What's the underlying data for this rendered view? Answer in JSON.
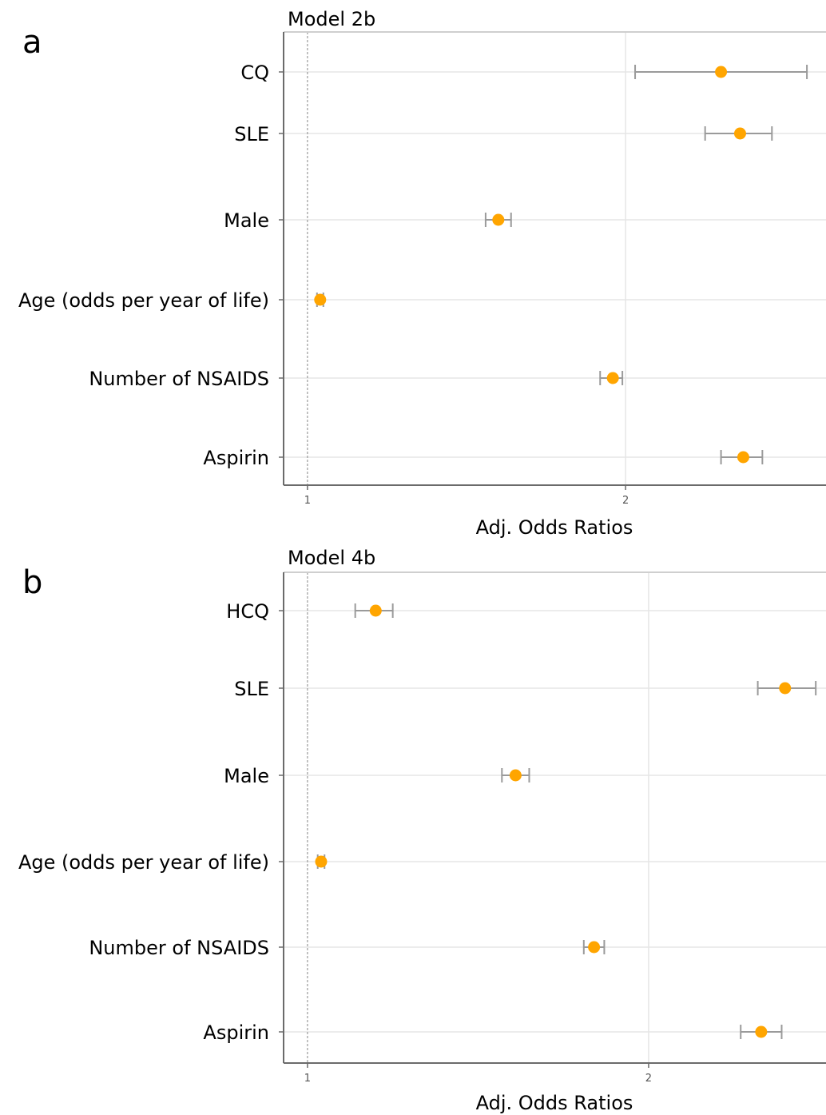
{
  "chart_data": [
    {
      "type": "scatter",
      "panel_label": "a",
      "title": "Model 2b",
      "xlabel": "Adj. Odds Ratios",
      "ylabel": "",
      "xlim": [
        0.925,
        2.63
      ],
      "x_ticks": [
        {
          "value": 1,
          "label": "1"
        },
        {
          "value": 2,
          "label": "2"
        }
      ],
      "reference_line": 1,
      "grid": true,
      "categories": [
        "CQ",
        "SLE",
        "Male",
        "Age (odds per year of life)",
        "Number of NSAIDS",
        "Aspirin"
      ],
      "series": [
        {
          "estimate": [
            2.3,
            2.36,
            1.6,
            1.04,
            1.96,
            2.37
          ],
          "ci_low": [
            2.03,
            2.25,
            1.56,
            1.03,
            1.92,
            2.3
          ],
          "ci_high": [
            2.57,
            2.46,
            1.64,
            1.05,
            1.99,
            2.43
          ]
        }
      ]
    },
    {
      "type": "scatter",
      "panel_label": "b",
      "title": "Model 4b",
      "xlabel": "Adj. Odds Ratios",
      "ylabel": "",
      "xlim": [
        0.93,
        2.52
      ],
      "x_ticks": [
        {
          "value": 1,
          "label": "1"
        },
        {
          "value": 2,
          "label": "2"
        }
      ],
      "reference_line": 1,
      "grid": true,
      "categories": [
        "HCQ",
        "SLE",
        "Male",
        "Age (odds per year of life)",
        "Number of NSAIDS",
        "Aspirin"
      ],
      "series": [
        {
          "estimate": [
            1.2,
            2.4,
            1.61,
            1.04,
            1.84,
            2.33
          ],
          "ci_low": [
            1.14,
            2.32,
            1.57,
            1.03,
            1.81,
            2.27
          ],
          "ci_high": [
            1.25,
            2.49,
            1.65,
            1.05,
            1.87,
            2.39
          ]
        }
      ]
    }
  ],
  "colors": {
    "point": "#ffa500",
    "errorbar": "#9a9a9a",
    "axis": "#6b6b6b",
    "grid": "#e6e6e6",
    "text": "#000000",
    "tick_text": "#555555"
  }
}
